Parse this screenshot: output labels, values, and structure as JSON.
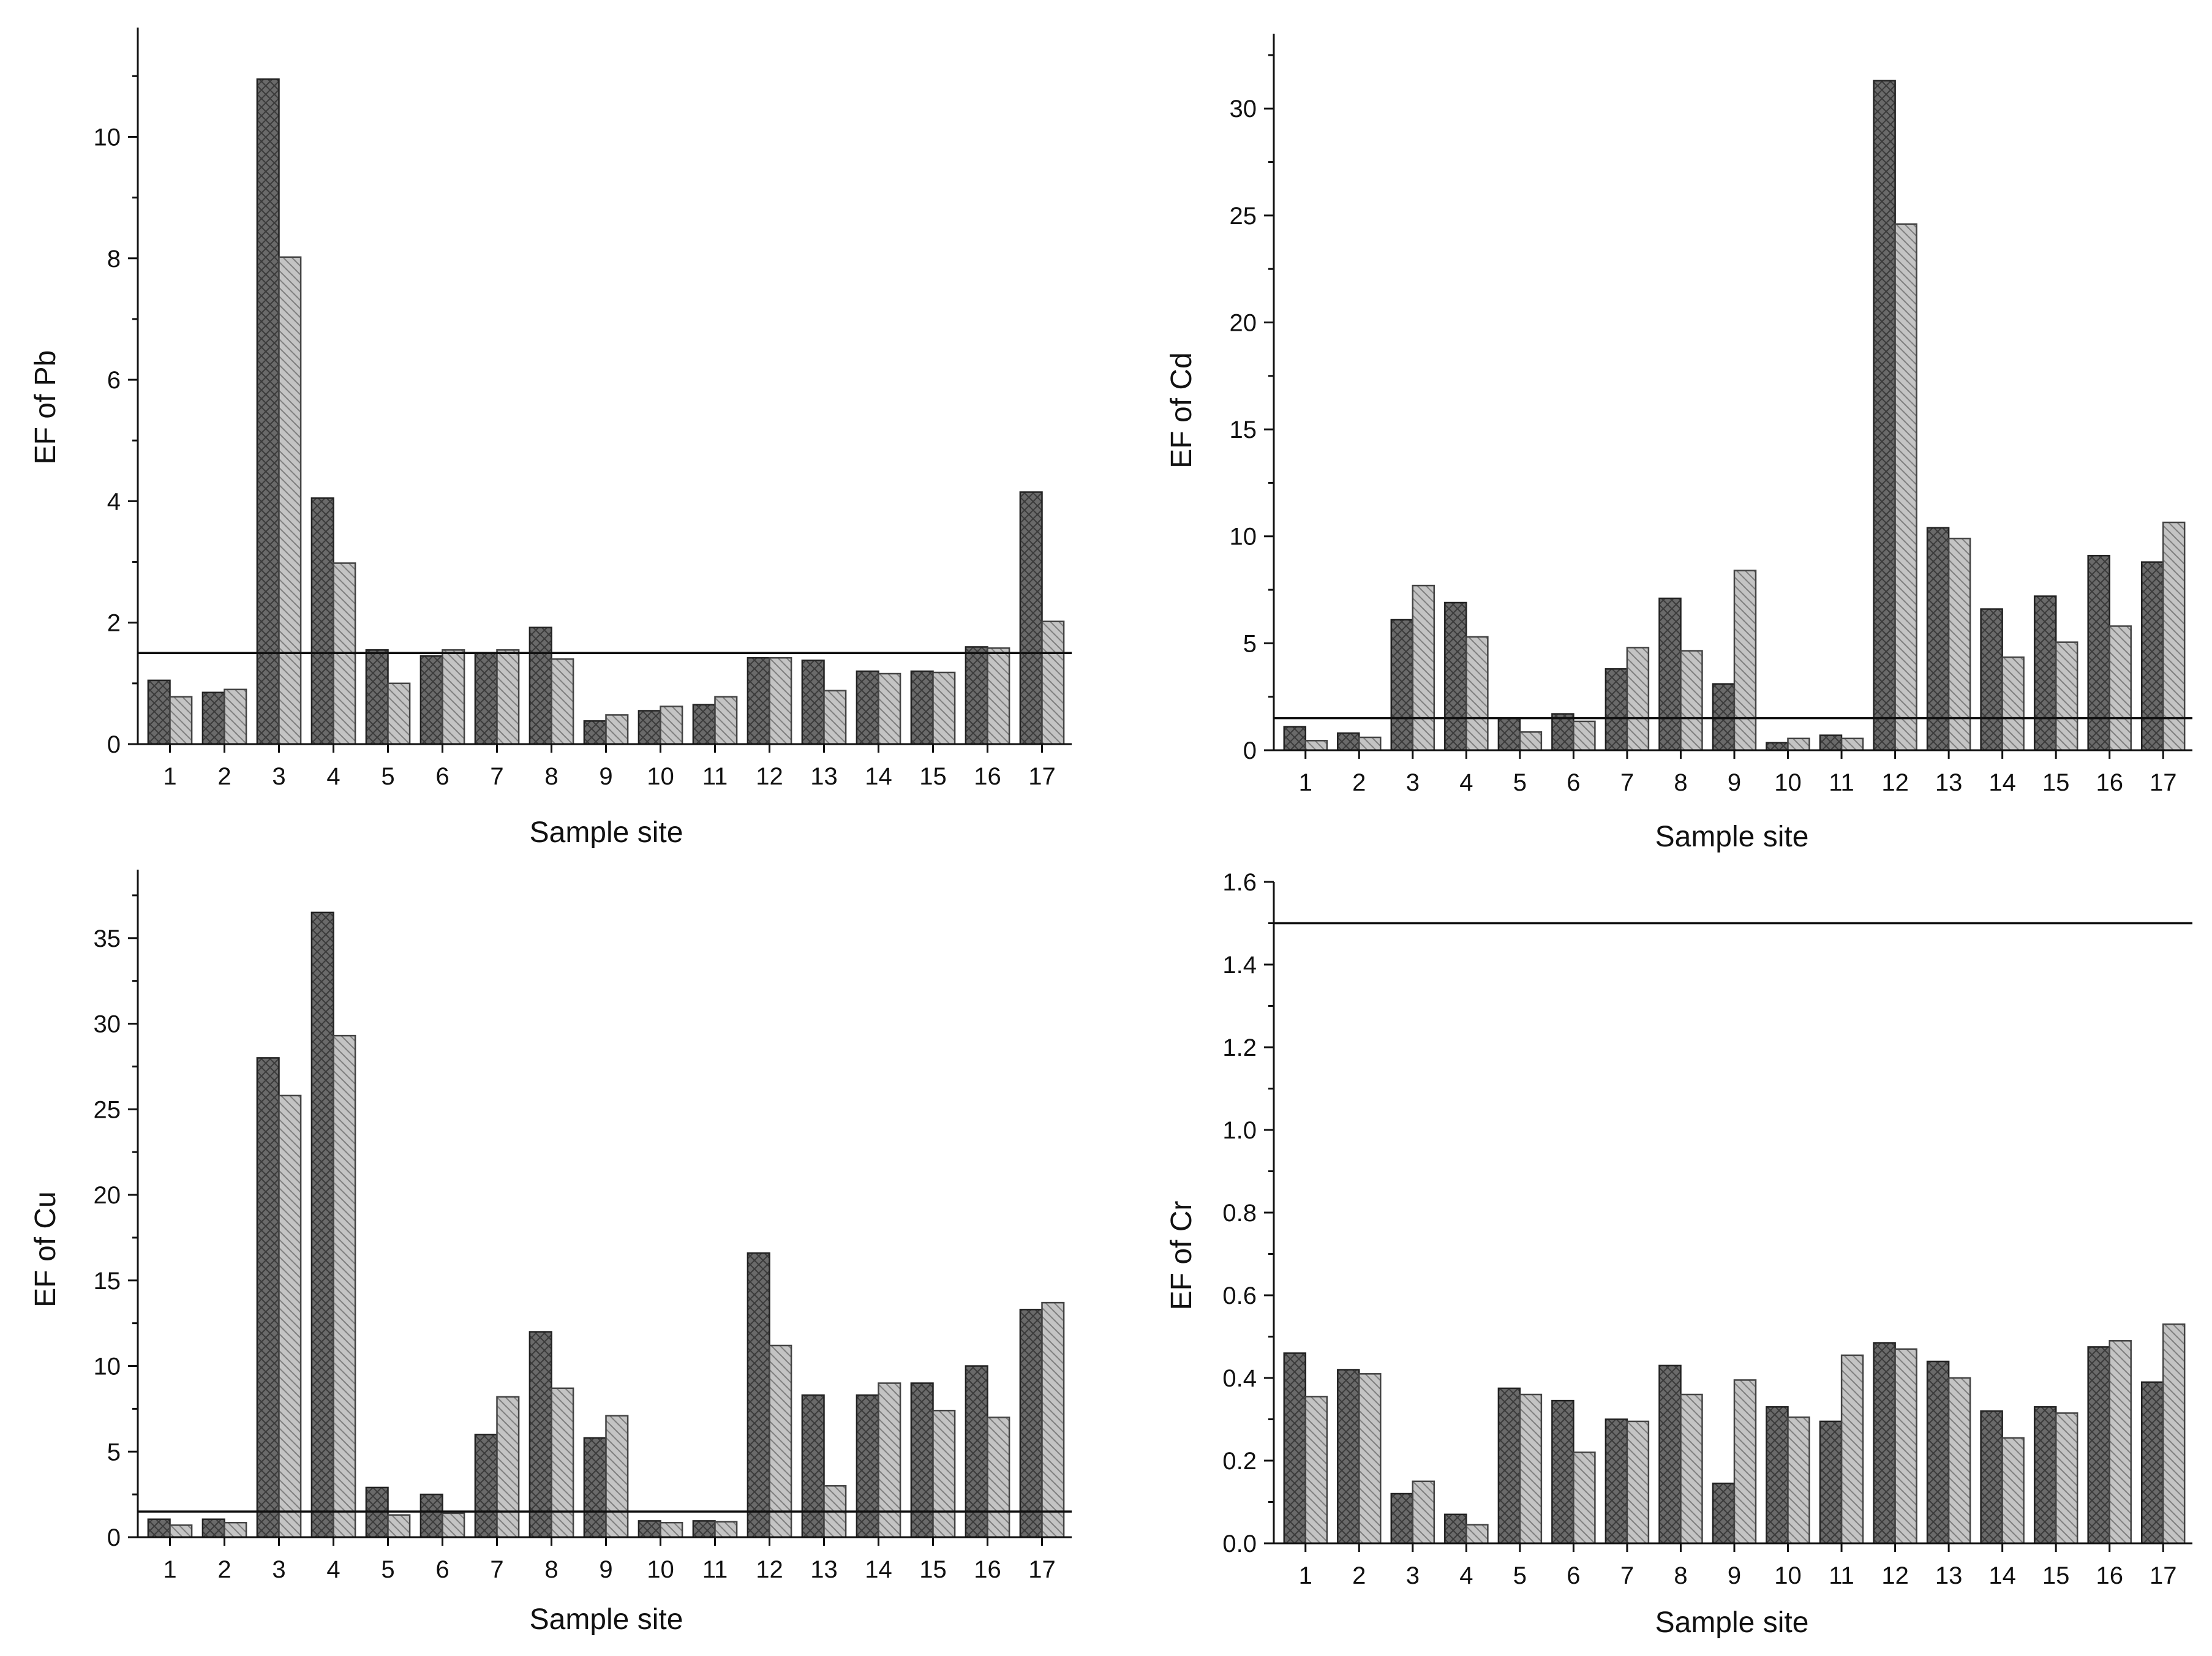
{
  "chart_data": [
    {
      "id": "pb",
      "type": "bar",
      "title": "",
      "xlabel": "Sample site",
      "ylabel": "EF of Pb",
      "categories": [
        "1",
        "2",
        "3",
        "4",
        "5",
        "6",
        "7",
        "8",
        "9",
        "10",
        "11",
        "12",
        "13",
        "14",
        "15",
        "16",
        "17"
      ],
      "ylim": [
        0,
        11.8
      ],
      "yticks": [
        0,
        2,
        4,
        6,
        8,
        10
      ],
      "ytick_labels": [
        "0",
        "2",
        "4",
        "6",
        "8",
        "10"
      ],
      "reference_line": 1.5,
      "series": [
        {
          "name": "series-1 (dark cross-hatch)",
          "values": [
            1.05,
            0.85,
            10.95,
            4.05,
            1.55,
            1.45,
            1.5,
            1.92,
            0.38,
            0.55,
            0.65,
            1.42,
            1.38,
            1.2,
            1.2,
            1.6,
            4.15
          ]
        },
        {
          "name": "series-2 (light diagonal hatch)",
          "values": [
            0.78,
            0.9,
            8.02,
            2.98,
            1.0,
            1.55,
            1.55,
            1.4,
            0.48,
            0.62,
            0.78,
            1.42,
            0.88,
            1.16,
            1.18,
            1.58,
            2.02
          ]
        }
      ]
    },
    {
      "id": "cd",
      "type": "bar",
      "title": "",
      "xlabel": "Sample site",
      "ylabel": "EF of Cd",
      "categories": [
        "1",
        "2",
        "3",
        "4",
        "5",
        "6",
        "7",
        "8",
        "9",
        "10",
        "11",
        "12",
        "13",
        "14",
        "15",
        "16",
        "17"
      ],
      "ylim": [
        0,
        33.5
      ],
      "yticks": [
        0,
        5,
        10,
        15,
        20,
        25,
        30
      ],
      "ytick_labels": [
        "0",
        "5",
        "10",
        "15",
        "20",
        "25",
        "30"
      ],
      "reference_line": 1.5,
      "series": [
        {
          "name": "series-1 (dark cross-hatch)",
          "values": [
            1.1,
            0.8,
            6.1,
            6.9,
            1.5,
            1.7,
            3.8,
            7.1,
            3.1,
            0.35,
            0.7,
            31.3,
            10.4,
            6.6,
            7.2,
            9.1,
            8.8
          ]
        },
        {
          "name": "series-2 (light diagonal hatch)",
          "values": [
            0.45,
            0.6,
            7.7,
            5.3,
            0.85,
            1.35,
            4.8,
            4.65,
            8.4,
            0.55,
            0.55,
            24.6,
            9.9,
            4.35,
            5.05,
            5.8,
            10.65
          ]
        }
      ]
    },
    {
      "id": "cu",
      "type": "bar",
      "title": "",
      "xlabel": "Sample site",
      "ylabel": "EF of Cu",
      "categories": [
        "1",
        "2",
        "3",
        "4",
        "5",
        "6",
        "7",
        "8",
        "9",
        "10",
        "11",
        "12",
        "13",
        "14",
        "15",
        "16",
        "17"
      ],
      "ylim": [
        0,
        39
      ],
      "yticks": [
        0,
        5,
        10,
        15,
        20,
        25,
        30,
        35
      ],
      "ytick_labels": [
        "0",
        "5",
        "10",
        "15",
        "20",
        "25",
        "30",
        "35"
      ],
      "reference_line": 1.5,
      "series": [
        {
          "name": "series-1 (dark cross-hatch)",
          "values": [
            1.05,
            1.05,
            28.0,
            36.5,
            2.9,
            2.5,
            6.0,
            12.0,
            5.8,
            0.95,
            0.95,
            16.6,
            8.3,
            8.3,
            9.0,
            10.0,
            13.3
          ]
        },
        {
          "name": "series-2 (light diagonal hatch)",
          "values": [
            0.7,
            0.85,
            25.8,
            29.3,
            1.3,
            1.4,
            8.2,
            8.7,
            7.1,
            0.85,
            0.9,
            11.2,
            3.0,
            9.0,
            7.4,
            7.0,
            13.7
          ]
        }
      ]
    },
    {
      "id": "cr",
      "type": "bar",
      "title": "",
      "xlabel": "Sample site",
      "ylabel": "EF of Cr",
      "categories": [
        "1",
        "2",
        "3",
        "4",
        "5",
        "6",
        "7",
        "8",
        "9",
        "10",
        "11",
        "12",
        "13",
        "14",
        "15",
        "16",
        "17"
      ],
      "ylim": [
        0,
        1.6
      ],
      "yticks": [
        0,
        0.2,
        0.4,
        0.6,
        0.8,
        1.0,
        1.2,
        1.4,
        1.6
      ],
      "ytick_labels": [
        "0.0",
        "0.2",
        "0.4",
        "0.6",
        "0.8",
        "1.0",
        "1.2",
        "1.4",
        "1.6"
      ],
      "reference_line": 1.5,
      "series": [
        {
          "name": "series-1 (dark cross-hatch)",
          "values": [
            0.46,
            0.42,
            0.12,
            0.07,
            0.375,
            0.345,
            0.3,
            0.43,
            0.145,
            0.33,
            0.295,
            0.485,
            0.44,
            0.32,
            0.33,
            0.475,
            0.39
          ]
        },
        {
          "name": "series-2 (light diagonal hatch)",
          "values": [
            0.355,
            0.41,
            0.15,
            0.045,
            0.36,
            0.22,
            0.295,
            0.36,
            0.395,
            0.305,
            0.455,
            0.47,
            0.4,
            0.255,
            0.315,
            0.49,
            0.53
          ]
        }
      ]
    }
  ]
}
